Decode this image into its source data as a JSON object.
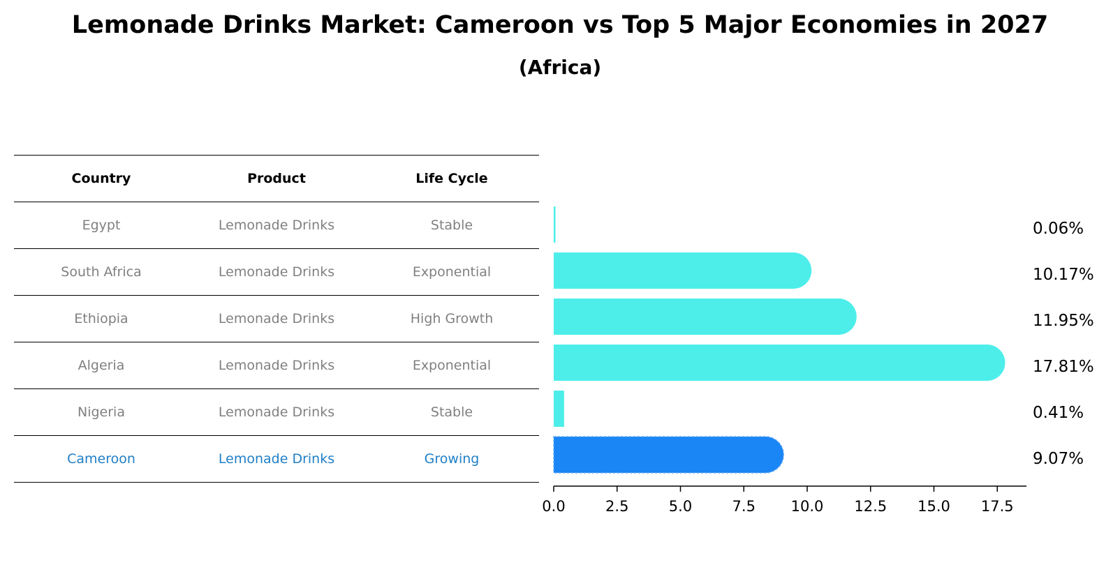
{
  "title": "Lemonade Drinks Market: Cameroon vs Top 5 Major Economies in 2027",
  "subtitle": "(Africa)",
  "table": {
    "headers": [
      "Country",
      "Product",
      "Life Cycle"
    ],
    "rows": [
      [
        "Egypt",
        "Lemonade Drinks",
        "Stable"
      ],
      [
        "South Africa",
        "Lemonade Drinks",
        "Exponential"
      ],
      [
        "Ethiopia",
        "Lemonade Drinks",
        "High Growth"
      ],
      [
        "Algeria",
        "Lemonade Drinks",
        "Exponential"
      ],
      [
        "Nigeria",
        "Lemonade Drinks",
        "Stable"
      ],
      [
        "Cameroon",
        "Lemonade Drinks",
        "Growing"
      ]
    ]
  },
  "colors": {
    "bar": "#4deeea",
    "highlight_bar": "#1a85f5",
    "highlight_text": "#1f7fc6",
    "muted_text": "#808080"
  },
  "chart_data": {
    "type": "bar",
    "orientation": "horizontal",
    "categories": [
      "Egypt",
      "South Africa",
      "Ethiopia",
      "Algeria",
      "Nigeria",
      "Cameroon"
    ],
    "values": [
      0.06,
      10.17,
      11.95,
      17.81,
      0.41,
      9.07
    ],
    "value_labels": [
      "0.06%",
      "10.17%",
      "11.95%",
      "17.81%",
      "0.41%",
      "9.07%"
    ],
    "highlight": "Cameroon",
    "xlim": [
      0,
      18.7
    ],
    "xticks": [
      0.0,
      2.5,
      5.0,
      7.5,
      10.0,
      12.5,
      15.0,
      17.5
    ],
    "xtick_labels": [
      "0.0",
      "2.5",
      "5.0",
      "7.5",
      "10.0",
      "12.5",
      "15.0",
      "17.5"
    ],
    "grid": false
  }
}
